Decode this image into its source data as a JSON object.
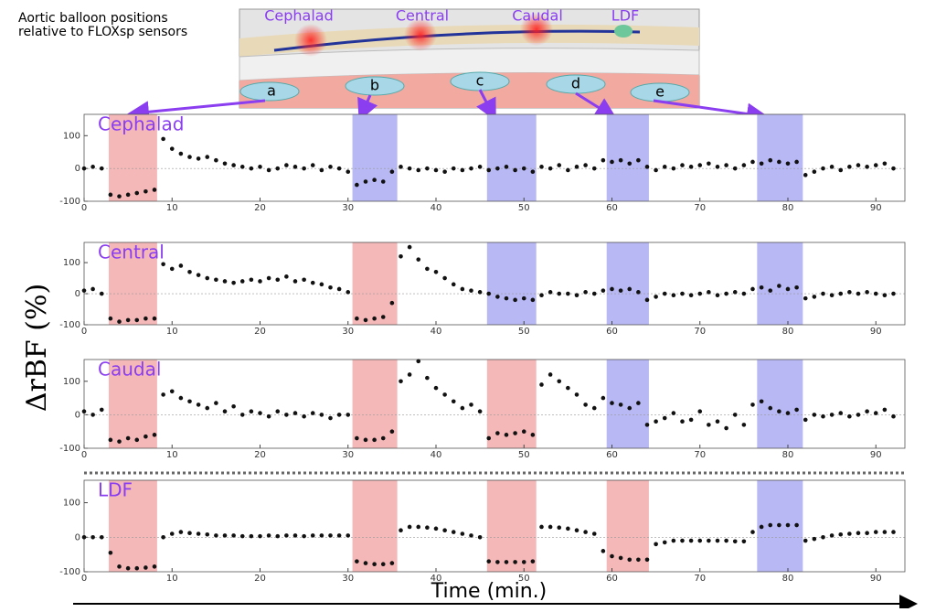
{
  "caption": [
    "Aortic balloon positions",
    "relative to FLOXsp sensors"
  ],
  "illustration": {
    "sensors": [
      "Cephalad",
      "Central",
      "Caudal",
      "LDF"
    ],
    "balloons": [
      "a",
      "b",
      "c",
      "d",
      "e"
    ]
  },
  "ylabel": "ΔrBF (%)",
  "xlabel": "Time (min.)",
  "chart_data": [
    {
      "type": "scatter",
      "title": "Cephalad",
      "color": "#111111",
      "zero_line": true,
      "xlim": [
        0,
        93.3
      ],
      "ylim": [
        -100,
        165
      ],
      "xticks": [
        0,
        10,
        20,
        30,
        40,
        50,
        60,
        70,
        80,
        90
      ],
      "yticks": [
        -100,
        0,
        100
      ],
      "shading": [
        {
          "start": 2.8,
          "end": 8.3,
          "color": "#f5b8b8"
        },
        {
          "start": 30.5,
          "end": 35.6,
          "color": "#b8b8f5"
        },
        {
          "start": 45.8,
          "end": 51.4,
          "color": "#b8b8f5"
        },
        {
          "start": 59.4,
          "end": 64.2,
          "color": "#b8b8f5"
        },
        {
          "start": 76.5,
          "end": 81.7,
          "color": "#b8b8f5"
        }
      ],
      "x": [
        0,
        1,
        2,
        3,
        4,
        5,
        6,
        7,
        8,
        9,
        10,
        11,
        12,
        13,
        14,
        15,
        16,
        17,
        18,
        19,
        20,
        21,
        22,
        23,
        24,
        25,
        26,
        27,
        28,
        29,
        30,
        31,
        32,
        33,
        34,
        35,
        36,
        37,
        38,
        39,
        40,
        41,
        42,
        43,
        44,
        45,
        46,
        47,
        48,
        49,
        50,
        51,
        52,
        53,
        54,
        55,
        56,
        57,
        58,
        59,
        60,
        61,
        62,
        63,
        64,
        65,
        66,
        67,
        68,
        69,
        70,
        71,
        72,
        73,
        74,
        75,
        76,
        77,
        78,
        79,
        80,
        81,
        82,
        83,
        84,
        85,
        86,
        87,
        88,
        89,
        90,
        91,
        92
      ],
      "values": [
        0,
        5,
        0,
        -80,
        -85,
        -80,
        -75,
        -70,
        -65,
        90,
        60,
        45,
        35,
        30,
        35,
        25,
        15,
        10,
        5,
        0,
        5,
        -5,
        0,
        10,
        5,
        0,
        10,
        -5,
        5,
        0,
        -10,
        -50,
        -40,
        -35,
        -40,
        -10,
        5,
        0,
        -5,
        0,
        -5,
        -10,
        0,
        -5,
        0,
        5,
        -5,
        0,
        5,
        -5,
        0,
        -10,
        5,
        0,
        10,
        -5,
        5,
        10,
        0,
        25,
        20,
        25,
        15,
        25,
        5,
        -5,
        5,
        0,
        10,
        5,
        10,
        15,
        5,
        10,
        0,
        10,
        20,
        15,
        25,
        20,
        15,
        20,
        -20,
        -10,
        0,
        5,
        -5,
        5,
        10,
        5,
        10,
        15,
        0
      ]
    },
    {
      "type": "scatter",
      "title": "Central",
      "color": "#111111",
      "zero_line": true,
      "xlim": [
        0,
        93.3
      ],
      "ylim": [
        -100,
        165
      ],
      "xticks": [
        0,
        10,
        20,
        30,
        40,
        50,
        60,
        70,
        80,
        90
      ],
      "yticks": [
        -100,
        0,
        100
      ],
      "shading": [
        {
          "start": 2.8,
          "end": 8.3,
          "color": "#f5b8b8"
        },
        {
          "start": 30.5,
          "end": 35.6,
          "color": "#f5b8b8"
        },
        {
          "start": 45.8,
          "end": 51.4,
          "color": "#b8b8f5"
        },
        {
          "start": 59.4,
          "end": 64.2,
          "color": "#b8b8f5"
        },
        {
          "start": 76.5,
          "end": 81.7,
          "color": "#b8b8f5"
        }
      ],
      "x": [
        0,
        1,
        2,
        3,
        4,
        5,
        6,
        7,
        8,
        9,
        10,
        11,
        12,
        13,
        14,
        15,
        16,
        17,
        18,
        19,
        20,
        21,
        22,
        23,
        24,
        25,
        26,
        27,
        28,
        29,
        30,
        31,
        32,
        33,
        34,
        35,
        36,
        37,
        38,
        39,
        40,
        41,
        42,
        43,
        44,
        45,
        46,
        47,
        48,
        49,
        50,
        51,
        52,
        53,
        54,
        55,
        56,
        57,
        58,
        59,
        60,
        61,
        62,
        63,
        64,
        65,
        66,
        67,
        68,
        69,
        70,
        71,
        72,
        73,
        74,
        75,
        76,
        77,
        78,
        79,
        80,
        81,
        82,
        83,
        84,
        85,
        86,
        87,
        88,
        89,
        90,
        91,
        92
      ],
      "values": [
        10,
        15,
        0,
        -80,
        -90,
        -85,
        -85,
        -80,
        -80,
        95,
        80,
        90,
        70,
        60,
        50,
        45,
        40,
        35,
        40,
        45,
        40,
        50,
        45,
        55,
        40,
        45,
        35,
        30,
        20,
        15,
        5,
        -80,
        -85,
        -80,
        -75,
        -30,
        120,
        150,
        110,
        80,
        70,
        50,
        30,
        15,
        10,
        5,
        0,
        -10,
        -15,
        -20,
        -15,
        -20,
        -5,
        5,
        0,
        0,
        -5,
        5,
        0,
        10,
        15,
        10,
        15,
        5,
        -20,
        -10,
        0,
        -5,
        0,
        -5,
        0,
        5,
        -5,
        0,
        5,
        0,
        15,
        20,
        10,
        25,
        15,
        20,
        -15,
        -10,
        0,
        -5,
        0,
        5,
        0,
        5,
        0,
        -5,
        0
      ]
    },
    {
      "type": "scatter",
      "title": "Caudal",
      "color": "#111111",
      "zero_line": true,
      "xlim": [
        0,
        93.3
      ],
      "ylim": [
        -100,
        165
      ],
      "xticks": [
        0,
        10,
        20,
        30,
        40,
        50,
        60,
        70,
        80,
        90
      ],
      "yticks": [
        -100,
        0,
        100
      ],
      "shading": [
        {
          "start": 2.8,
          "end": 8.3,
          "color": "#f5b8b8"
        },
        {
          "start": 30.5,
          "end": 35.6,
          "color": "#f5b8b8"
        },
        {
          "start": 45.8,
          "end": 51.4,
          "color": "#f5b8b8"
        },
        {
          "start": 59.4,
          "end": 64.2,
          "color": "#b8b8f5"
        },
        {
          "start": 76.5,
          "end": 81.7,
          "color": "#b8b8f5"
        }
      ],
      "x": [
        0,
        1,
        2,
        3,
        4,
        5,
        6,
        7,
        8,
        9,
        10,
        11,
        12,
        13,
        14,
        15,
        16,
        17,
        18,
        19,
        20,
        21,
        22,
        23,
        24,
        25,
        26,
        27,
        28,
        29,
        30,
        31,
        32,
        33,
        34,
        35,
        36,
        37,
        38,
        39,
        40,
        41,
        42,
        43,
        44,
        45,
        46,
        47,
        48,
        49,
        50,
        51,
        52,
        53,
        54,
        55,
        56,
        57,
        58,
        59,
        60,
        61,
        62,
        63,
        64,
        65,
        66,
        67,
        68,
        69,
        70,
        71,
        72,
        73,
        74,
        75,
        76,
        77,
        78,
        79,
        80,
        81,
        82,
        83,
        84,
        85,
        86,
        87,
        88,
        89,
        90,
        91,
        92
      ],
      "values": [
        10,
        0,
        15,
        -75,
        -80,
        -70,
        -75,
        -65,
        -60,
        60,
        70,
        50,
        40,
        30,
        20,
        35,
        10,
        25,
        0,
        10,
        5,
        -5,
        10,
        0,
        5,
        -5,
        5,
        0,
        -10,
        0,
        0,
        -70,
        -75,
        -75,
        -70,
        -50,
        100,
        120,
        160,
        110,
        80,
        60,
        40,
        20,
        30,
        10,
        -70,
        -55,
        -60,
        -55,
        -50,
        -60,
        90,
        120,
        100,
        80,
        60,
        30,
        20,
        50,
        35,
        30,
        20,
        35,
        -30,
        -20,
        -10,
        5,
        -20,
        -15,
        10,
        -30,
        -20,
        -40,
        0,
        -30,
        30,
        40,
        20,
        10,
        5,
        15,
        -15,
        0,
        -5,
        0,
        5,
        -5,
        0,
        10,
        5,
        15,
        -5
      ]
    },
    {
      "type": "scatter",
      "title": "LDF",
      "color": "#111111",
      "zero_line": true,
      "xlim": [
        0,
        93.3
      ],
      "ylim": [
        -100,
        165
      ],
      "xticks": [
        0,
        10,
        20,
        30,
        40,
        50,
        60,
        70,
        80,
        90
      ],
      "yticks": [
        -100,
        0,
        100
      ],
      "shading": [
        {
          "start": 2.8,
          "end": 8.3,
          "color": "#f5b8b8"
        },
        {
          "start": 30.5,
          "end": 35.6,
          "color": "#f5b8b8"
        },
        {
          "start": 45.8,
          "end": 51.4,
          "color": "#f5b8b8"
        },
        {
          "start": 59.4,
          "end": 64.2,
          "color": "#f5b8b8"
        },
        {
          "start": 76.5,
          "end": 81.7,
          "color": "#b8b8f5"
        }
      ],
      "x": [
        0,
        1,
        2,
        3,
        4,
        5,
        6,
        7,
        8,
        9,
        10,
        11,
        12,
        13,
        14,
        15,
        16,
        17,
        18,
        19,
        20,
        21,
        22,
        23,
        24,
        25,
        26,
        27,
        28,
        29,
        30,
        31,
        32,
        33,
        34,
        35,
        36,
        37,
        38,
        39,
        40,
        41,
        42,
        43,
        44,
        45,
        46,
        47,
        48,
        49,
        50,
        51,
        52,
        53,
        54,
        55,
        56,
        57,
        58,
        59,
        60,
        61,
        62,
        63,
        64,
        65,
        66,
        67,
        68,
        69,
        70,
        71,
        72,
        73,
        74,
        75,
        76,
        77,
        78,
        79,
        80,
        81,
        82,
        83,
        84,
        85,
        86,
        87,
        88,
        89,
        90,
        91,
        92
      ],
      "values": [
        0,
        0,
        0,
        -45,
        -85,
        -90,
        -90,
        -88,
        -85,
        0,
        10,
        15,
        12,
        10,
        8,
        5,
        5,
        5,
        3,
        3,
        3,
        5,
        3,
        5,
        5,
        3,
        5,
        5,
        5,
        5,
        5,
        -70,
        -75,
        -78,
        -78,
        -75,
        20,
        30,
        30,
        28,
        25,
        20,
        15,
        10,
        5,
        0,
        -70,
        -72,
        -72,
        -72,
        -72,
        -70,
        30,
        30,
        28,
        25,
        20,
        15,
        10,
        -40,
        -55,
        -60,
        -65,
        -65,
        -65,
        -20,
        -15,
        -10,
        -10,
        -10,
        -10,
        -10,
        -10,
        -10,
        -12,
        -12,
        15,
        30,
        35,
        35,
        35,
        35,
        -10,
        -5,
        0,
        5,
        8,
        10,
        12,
        12,
        15,
        15,
        15
      ]
    }
  ]
}
